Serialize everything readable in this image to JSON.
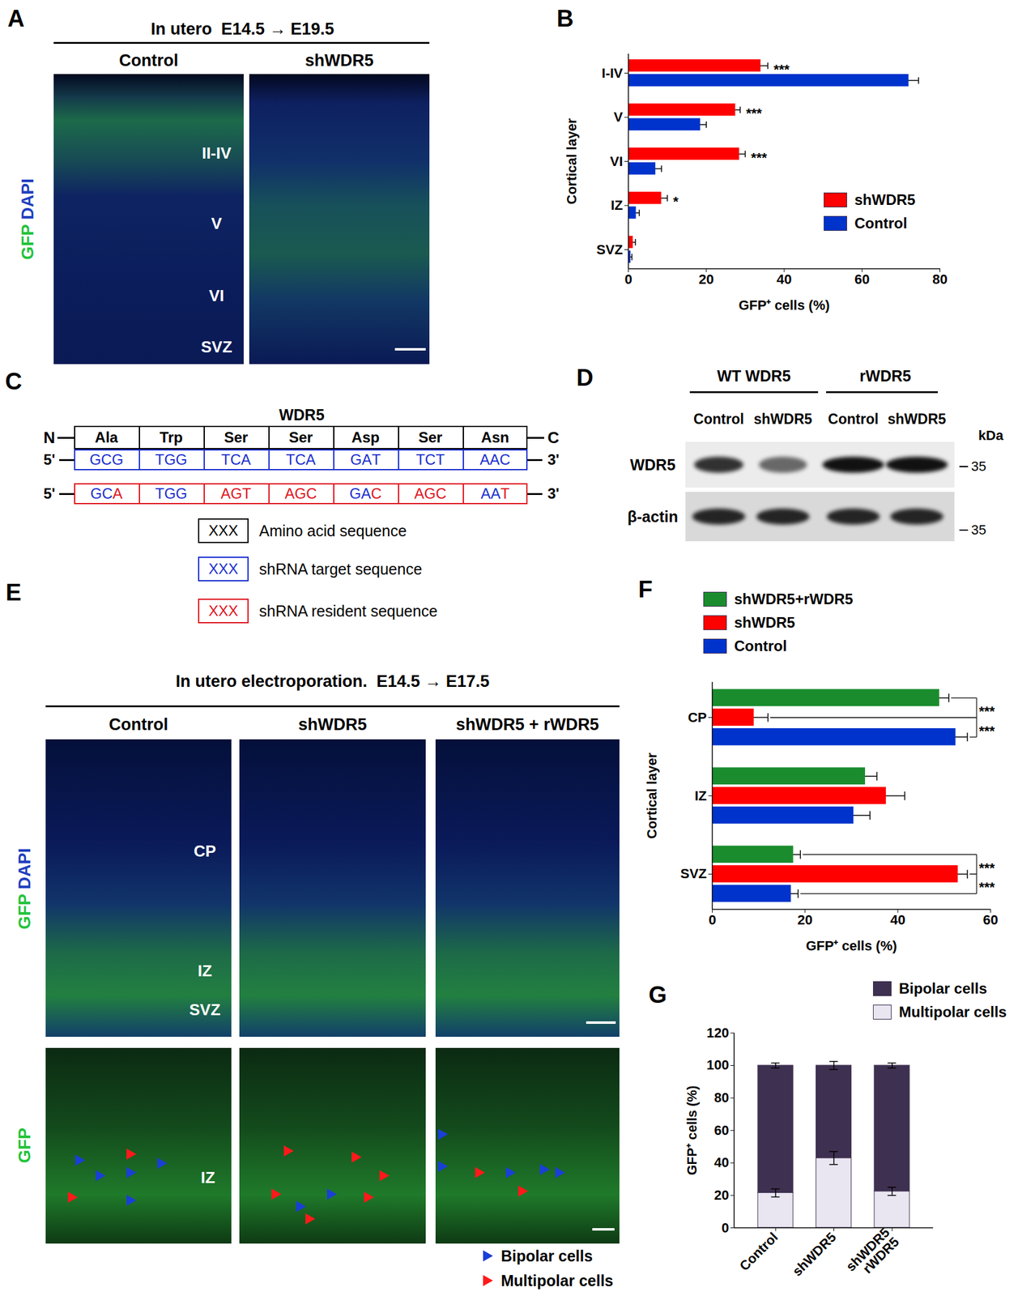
{
  "panels": {
    "A": {
      "letter": "A",
      "header": "In utero  E14.5 → E19.5",
      "columns": [
        "Control",
        "shWDR5"
      ],
      "stain": [
        {
          "text": "GFP",
          "color": "#22c33a"
        },
        {
          "text": "DAPI",
          "color": "#1f3fbf"
        }
      ],
      "layers": [
        "II-IV",
        "V",
        "VI",
        "SVZ"
      ]
    },
    "C": {
      "letter": "C",
      "title": "WDR5",
      "ends": [
        "N",
        "C"
      ],
      "strand_ends": [
        "5'",
        "3'"
      ],
      "amino_acids": [
        "Ala",
        "Trp",
        "Ser",
        "Ser",
        "Asp",
        "Ser",
        "Asn"
      ],
      "target": [
        "GCG",
        "TGG",
        "TCA",
        "TCA",
        "GAT",
        "TCT",
        "AAC"
      ],
      "resident": [
        "GCA",
        "TGG",
        "AGT",
        "AGC",
        "GAC",
        "AGC",
        "AAT"
      ],
      "key": [
        {
          "box": "XXX",
          "text": "Amino acid sequence",
          "color": "#000000"
        },
        {
          "box": "XXX",
          "text": "shRNA target sequence",
          "color": "#1a2fd0"
        },
        {
          "box": "XXX",
          "text": "shRNA resident sequence",
          "color": "#e0141e"
        }
      ]
    },
    "D": {
      "letter": "D",
      "groups": [
        "WT WDR5",
        "rWDR5"
      ],
      "lanes": [
        "Control",
        "shWDR5",
        "Control",
        "shWDR5"
      ],
      "unit": "kDa",
      "rows": [
        {
          "label": "WDR5",
          "marker": 35
        },
        {
          "label": "β-actin",
          "marker": 35
        }
      ]
    },
    "E": {
      "letter": "E",
      "header": "In utero electroporation.  E14.5 → E17.5",
      "columns": [
        "Control",
        "shWDR5",
        "shWDR5 + rWDR5"
      ],
      "stain_top": [
        {
          "text": "GFP",
          "color": "#22c33a"
        },
        {
          "text": "DAPI",
          "color": "#1f3fbf"
        }
      ],
      "stain_bottom": [
        {
          "text": "GFP",
          "color": "#22c33a"
        }
      ],
      "layers_top": [
        "CP",
        "IZ",
        "SVZ"
      ],
      "layers_bottom": [
        "IZ"
      ],
      "arrow_key": [
        {
          "text": "Bipolar cells",
          "color": "#1a3fd6"
        },
        {
          "text": "Multipolar cells",
          "color": "#ff1a1a"
        }
      ]
    }
  },
  "chart_data": [
    {
      "letter": "B",
      "type": "bar",
      "orientation": "horizontal",
      "categories": [
        "I-IV",
        "V",
        "VI",
        "IZ",
        "SVZ"
      ],
      "series": [
        {
          "name": "shWDR5",
          "color": "#ff0000",
          "values": [
            34,
            27.5,
            28.5,
            8.5,
            1.2
          ],
          "errors": [
            1.8,
            1.2,
            1.5,
            1.5,
            0.6
          ]
        },
        {
          "name": "Control",
          "color": "#0033cc",
          "values": [
            72,
            18.5,
            7,
            2,
            0.6
          ],
          "errors": [
            2.5,
            1.5,
            1.5,
            0.8,
            0.3
          ]
        }
      ],
      "xlim": [
        0,
        80
      ],
      "xticks": [
        0,
        20,
        40,
        60,
        80
      ],
      "x_label": "GFP⁺ cells (%)",
      "y_label": "Cortical layer",
      "legend": "right",
      "annotations": [
        {
          "category": "I-IV",
          "text": "***"
        },
        {
          "category": "V",
          "text": "***"
        },
        {
          "category": "VI",
          "text": "***"
        },
        {
          "category": "IZ",
          "text": "*"
        }
      ]
    },
    {
      "letter": "F",
      "type": "bar",
      "orientation": "horizontal",
      "categories": [
        "CP",
        "IZ",
        "SVZ"
      ],
      "series": [
        {
          "name": "shWDR5+rWDR5",
          "color": "#1a8c2e",
          "values": [
            49,
            33,
            17.5
          ],
          "errors": [
            2,
            2.5,
            1.5
          ]
        },
        {
          "name": "shWDR5",
          "color": "#ff0000",
          "values": [
            9,
            37.5,
            53
          ],
          "errors": [
            3,
            4,
            2
          ]
        },
        {
          "name": "Control",
          "color": "#0033cc",
          "values": [
            52.5,
            30.5,
            17
          ],
          "errors": [
            2.5,
            3.5,
            1.5
          ]
        }
      ],
      "xlim": [
        0,
        60
      ],
      "xticks": [
        0,
        20,
        40,
        60
      ],
      "x_label": "GFP⁺ cells (%)",
      "y_label": "Cortical layer",
      "legend": "top",
      "annotations": [
        {
          "category": "CP",
          "between": [
            "shWDR5+rWDR5",
            "shWDR5"
          ],
          "text": "***"
        },
        {
          "category": "CP",
          "between": [
            "shWDR5",
            "Control"
          ],
          "text": "***"
        },
        {
          "category": "SVZ",
          "between": [
            "shWDR5+rWDR5",
            "shWDR5"
          ],
          "text": "***"
        },
        {
          "category": "SVZ",
          "between": [
            "shWDR5",
            "Control"
          ],
          "text": "***"
        }
      ]
    },
    {
      "letter": "G",
      "type": "bar",
      "stacked": true,
      "categories": [
        "Control",
        "shWDR5",
        "shWDR5\nrWDR5"
      ],
      "series": [
        {
          "name": "Multipolar cells",
          "color": "#e9e5f1",
          "values": [
            21.5,
            43,
            22.5
          ],
          "errors": [
            2.5,
            4,
            2.5
          ]
        },
        {
          "name": "Bipolar cells",
          "color": "#3e3050",
          "values": [
            78.5,
            57,
            77.5
          ],
          "errors": [
            1.5,
            2.5,
            1.5
          ]
        }
      ],
      "ylim": [
        0,
        120
      ],
      "yticks": [
        0,
        20,
        40,
        60,
        80,
        100,
        120
      ],
      "y_label": "GFP⁺ cells (%)",
      "legend": "top-right"
    }
  ]
}
